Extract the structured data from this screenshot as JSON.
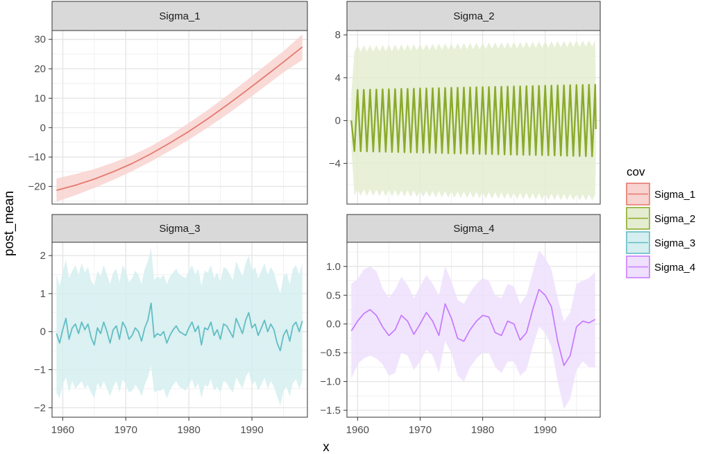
{
  "chart_data": {
    "type": "line",
    "xlabel": "x",
    "ylabel": "post_mean",
    "xlim": [
      1958.3,
      1998.8
    ],
    "x_ticks": [
      1960,
      1970,
      1980,
      1990
    ],
    "grid": true,
    "legend": {
      "title": "cov",
      "placement": "right",
      "entries": [
        "Sigma_1",
        "Sigma_2",
        "Sigma_3",
        "Sigma_4"
      ]
    },
    "panels": [
      {
        "name": "Sigma_1",
        "color": "#E5796E",
        "fill": "#F8D3D0",
        "ylim": [
          -26,
          33
        ],
        "y_ticks": [
          -20,
          -10,
          0,
          10,
          20,
          30
        ],
        "y_tick_labels": [
          "−20",
          "−10",
          "0",
          "10",
          "20",
          "30"
        ],
        "x": [
          1959,
          1962,
          1965,
          1968,
          1971,
          1974,
          1977,
          1980,
          1983,
          1986,
          1989,
          1992,
          1995,
          1998
        ],
        "mean": [
          -21.3,
          -19.6,
          -17.5,
          -15.0,
          -12.2,
          -8.9,
          -5.2,
          -1.3,
          3.0,
          7.6,
          12.4,
          17.3,
          22.3,
          27.4
        ],
        "lower": [
          -25.2,
          -23.0,
          -20.5,
          -17.8,
          -14.8,
          -11.5,
          -7.9,
          -4.1,
          0.0,
          4.4,
          9.1,
          13.9,
          18.8,
          23.0
        ],
        "upper": [
          -17.3,
          -15.8,
          -14.1,
          -11.9,
          -9.4,
          -6.3,
          -2.6,
          1.6,
          6.0,
          10.8,
          15.8,
          20.9,
          26.0,
          31.7
        ]
      },
      {
        "name": "Sigma_2",
        "color": "#8BAA2C",
        "fill": "#E4EDD0",
        "ylim": [
          -7.8,
          8.4
        ],
        "y_ticks": [
          -4,
          0,
          4,
          8
        ],
        "y_tick_labels": [
          "−4",
          "0",
          "4",
          "8"
        ],
        "seasonal": {
          "period": 1,
          "start": 1959,
          "end": 1998,
          "amp_start": 2.85,
          "amp_end": 3.35,
          "band_start": 7.3,
          "band_end": 7.8
        }
      },
      {
        "name": "Sigma_3",
        "color": "#60BDC4",
        "fill": "#D5EEF0",
        "ylim": [
          -2.25,
          2.35
        ],
        "y_ticks": [
          -2,
          -1,
          0,
          1,
          2
        ],
        "y_tick_labels": [
          "−2",
          "−1",
          "0",
          "1",
          "2"
        ],
        "x": [
          1959.0,
          1959.5,
          1960.0,
          1960.5,
          1961.0,
          1961.5,
          1962.0,
          1962.5,
          1963.0,
          1963.5,
          1964.0,
          1964.5,
          1965.0,
          1965.5,
          1966.0,
          1966.5,
          1967.0,
          1967.5,
          1968.0,
          1968.5,
          1969.0,
          1969.5,
          1970.0,
          1970.5,
          1971.0,
          1971.5,
          1972.0,
          1972.5,
          1973.0,
          1973.5,
          1974.0,
          1974.5,
          1975.0,
          1975.5,
          1976.0,
          1976.5,
          1977.0,
          1977.5,
          1978.0,
          1978.5,
          1979.0,
          1979.5,
          1980.0,
          1980.5,
          1981.0,
          1981.5,
          1982.0,
          1982.5,
          1983.0,
          1983.5,
          1984.0,
          1984.5,
          1985.0,
          1985.5,
          1986.0,
          1986.5,
          1987.0,
          1987.5,
          1988.0,
          1988.5,
          1989.0,
          1989.5,
          1990.0,
          1990.5,
          1991.0,
          1991.5,
          1992.0,
          1992.5,
          1993.0,
          1993.5,
          1994.0,
          1994.5,
          1995.0,
          1995.5,
          1996.0,
          1996.5,
          1997.0,
          1997.5,
          1998.0
        ],
        "mean": [
          -0.05,
          -0.3,
          0.05,
          0.35,
          -0.2,
          0.1,
          0.2,
          -0.05,
          0.25,
          0.05,
          0.2,
          -0.15,
          -0.35,
          0.1,
          -0.05,
          0.25,
          0.0,
          -0.3,
          0.05,
          0.15,
          -0.2,
          0.25,
          0.1,
          -0.2,
          -0.1,
          0.1,
          0.0,
          -0.25,
          0.1,
          0.3,
          0.75,
          -0.15,
          -0.05,
          -0.1,
          0.0,
          -0.3,
          -0.1,
          0.05,
          0.15,
          0.0,
          -0.05,
          -0.1,
          0.1,
          0.25,
          0.0,
          0.15,
          -0.35,
          0.1,
          0.05,
          0.25,
          -0.1,
          0.05,
          -0.2,
          0.2,
          0.15,
          0.0,
          -0.15,
          0.35,
          0.15,
          -0.05,
          0.3,
          0.5,
          0.1,
          0.2,
          -0.1,
          0.1,
          0.3,
          0.0,
          0.2,
          0.05,
          -0.3,
          -0.5,
          -0.1,
          0.05,
          -0.25,
          0.15,
          0.25,
          0.0,
          0.28
        ],
        "lower": [
          -1.6,
          -1.75,
          -1.4,
          -1.2,
          -1.6,
          -1.3,
          -1.5,
          -1.4,
          -1.3,
          -1.5,
          -1.4,
          -1.6,
          -1.75,
          -1.35,
          -1.5,
          -1.3,
          -1.5,
          -1.7,
          -1.45,
          -1.3,
          -1.6,
          -1.25,
          -1.4,
          -1.6,
          -1.55,
          -1.4,
          -1.5,
          -1.7,
          -1.4,
          -1.2,
          -0.9,
          -1.6,
          -1.55,
          -1.55,
          -1.5,
          -1.75,
          -1.55,
          -1.4,
          -1.3,
          -1.45,
          -1.5,
          -1.55,
          -1.4,
          -1.25,
          -1.5,
          -1.35,
          -1.75,
          -1.4,
          -1.45,
          -1.25,
          -1.55,
          -1.45,
          -1.6,
          -1.3,
          -1.35,
          -1.5,
          -1.6,
          -1.2,
          -1.35,
          -1.5,
          -1.2,
          -1.05,
          -1.4,
          -1.3,
          -1.55,
          -1.4,
          -1.2,
          -1.5,
          -1.3,
          -1.45,
          -1.7,
          -1.95,
          -1.55,
          -1.45,
          -1.7,
          -1.35,
          -1.25,
          -1.5,
          -1.3
        ],
        "upper": [
          1.5,
          1.2,
          1.55,
          1.9,
          1.4,
          1.6,
          1.75,
          1.5,
          1.8,
          1.55,
          1.7,
          1.35,
          1.2,
          1.6,
          1.45,
          1.75,
          1.5,
          1.25,
          1.55,
          1.65,
          1.3,
          1.75,
          1.6,
          1.3,
          1.4,
          1.6,
          1.5,
          1.25,
          1.65,
          1.85,
          2.2,
          1.35,
          1.45,
          1.4,
          1.5,
          1.25,
          1.45,
          1.55,
          1.65,
          1.5,
          1.45,
          1.4,
          1.6,
          1.75,
          1.5,
          1.65,
          1.2,
          1.6,
          1.55,
          1.75,
          1.4,
          1.55,
          1.3,
          1.7,
          1.65,
          1.5,
          1.35,
          1.85,
          1.65,
          1.45,
          1.8,
          2.0,
          1.6,
          1.7,
          1.4,
          1.6,
          1.8,
          1.5,
          1.7,
          1.55,
          1.25,
          1.0,
          1.45,
          1.55,
          1.25,
          1.65,
          1.75,
          1.5,
          1.8
        ]
      },
      {
        "name": "Sigma_4",
        "color": "#C77CFF",
        "fill": "#EFE0FD",
        "ylim": [
          -1.62,
          1.42
        ],
        "y_ticks": [
          -1.5,
          -1.0,
          -0.5,
          0.0,
          0.5,
          1.0
        ],
        "y_tick_labels": [
          "−1.5",
          "−1.0",
          "−0.5",
          "0.0",
          "0.5",
          "1.0"
        ],
        "x": [
          1959,
          1960,
          1961,
          1962,
          1963,
          1964,
          1965,
          1966,
          1967,
          1968,
          1969,
          1970,
          1971,
          1972,
          1973,
          1974,
          1975,
          1976,
          1977,
          1978,
          1979,
          1980,
          1981,
          1982,
          1983,
          1984,
          1985,
          1986,
          1987,
          1988,
          1989,
          1990,
          1991,
          1992,
          1993,
          1994,
          1995,
          1996,
          1997,
          1998
        ],
        "mean": [
          -0.12,
          0.05,
          0.18,
          0.25,
          0.15,
          -0.05,
          -0.2,
          -0.1,
          0.15,
          0.05,
          -0.18,
          0.0,
          0.2,
          0.05,
          -0.2,
          0.35,
          0.1,
          -0.25,
          -0.3,
          -0.1,
          0.05,
          0.15,
          0.12,
          -0.15,
          -0.2,
          0.05,
          0.0,
          -0.28,
          -0.15,
          0.25,
          0.6,
          0.5,
          0.3,
          -0.3,
          -0.72,
          -0.55,
          -0.05,
          0.05,
          0.02,
          0.08
        ],
        "lower": [
          -0.95,
          -0.7,
          -0.6,
          -0.55,
          -0.6,
          -0.7,
          -0.9,
          -0.85,
          -0.5,
          -0.55,
          -0.8,
          -0.65,
          -0.45,
          -0.55,
          -0.85,
          -0.3,
          -0.5,
          -0.9,
          -1.0,
          -0.75,
          -0.6,
          -0.5,
          -0.5,
          -0.75,
          -0.85,
          -0.65,
          -0.65,
          -0.9,
          -0.8,
          -0.4,
          -0.05,
          -0.15,
          -0.4,
          -1.0,
          -1.48,
          -1.3,
          -0.8,
          -0.65,
          -0.75,
          -0.75
        ],
        "upper": [
          0.7,
          0.78,
          0.95,
          1.0,
          0.92,
          0.62,
          0.45,
          0.6,
          0.82,
          0.68,
          0.45,
          0.65,
          0.85,
          0.7,
          0.5,
          1.0,
          0.75,
          0.42,
          0.35,
          0.55,
          0.7,
          0.8,
          0.75,
          0.5,
          0.45,
          0.7,
          0.65,
          0.35,
          0.5,
          0.9,
          1.28,
          1.15,
          0.95,
          0.45,
          0.05,
          0.2,
          0.7,
          0.75,
          0.8,
          0.9
        ]
      }
    ]
  }
}
